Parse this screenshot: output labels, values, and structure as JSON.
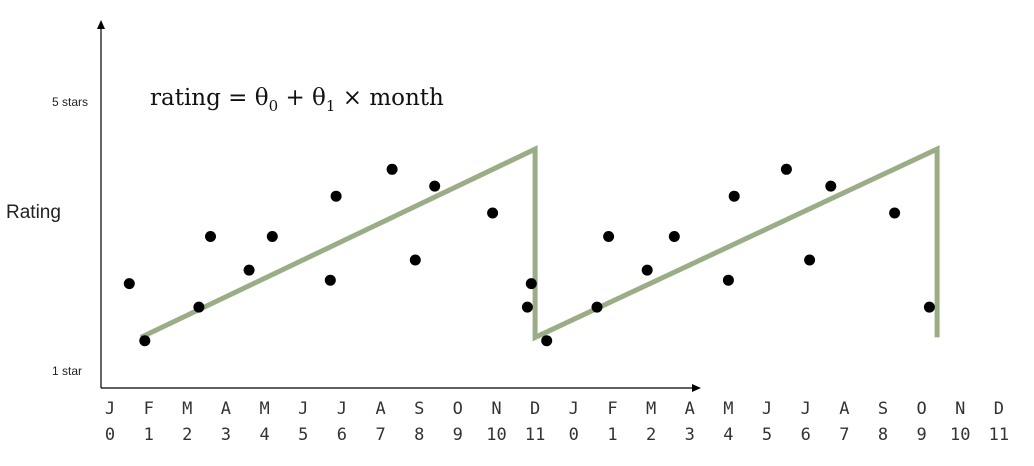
{
  "chart_data": {
    "type": "scatter",
    "title": "",
    "ylabel": "Rating",
    "xlabel": "",
    "y_tick_labels": {
      "top": "5 stars",
      "bottom": "1 star"
    },
    "annotation": "rating = θ₀ + θ₁ × month",
    "ylim": [
      1,
      5
    ],
    "xlim": [
      0,
      23
    ],
    "month_letters": [
      "J",
      "F",
      "M",
      "A",
      "M",
      "J",
      "J",
      "A",
      "S",
      "O",
      "N",
      "D",
      "J",
      "F",
      "M",
      "A",
      "M",
      "J",
      "J",
      "A",
      "S",
      "O",
      "N",
      "D"
    ],
    "month_numbers": [
      "0",
      "1",
      "2",
      "3",
      "4",
      "5",
      "6",
      "7",
      "8",
      "9",
      "10",
      "11",
      "0",
      "1",
      "2",
      "3",
      "4",
      "5",
      "6",
      "7",
      "8",
      "9",
      "10",
      "11"
    ],
    "points": [
      {
        "x": 0.5,
        "y": 2.3
      },
      {
        "x": 0.9,
        "y": 1.45
      },
      {
        "x": 2.3,
        "y": 1.95
      },
      {
        "x": 2.6,
        "y": 3.0
      },
      {
        "x": 3.6,
        "y": 2.5
      },
      {
        "x": 4.2,
        "y": 3.0
      },
      {
        "x": 5.7,
        "y": 2.35
      },
      {
        "x": 5.85,
        "y": 3.6
      },
      {
        "x": 7.3,
        "y": 4.0
      },
      {
        "x": 7.9,
        "y": 2.65
      },
      {
        "x": 8.4,
        "y": 3.75
      },
      {
        "x": 9.9,
        "y": 3.35
      },
      {
        "x": 10.8,
        "y": 1.95
      },
      {
        "x": 10.9,
        "y": 2.3
      },
      {
        "x": 11.3,
        "y": 1.45
      },
      {
        "x": 12.6,
        "y": 1.95
      },
      {
        "x": 12.9,
        "y": 3.0
      },
      {
        "x": 13.9,
        "y": 2.5
      },
      {
        "x": 14.6,
        "y": 3.0
      },
      {
        "x": 16.0,
        "y": 2.35
      },
      {
        "x": 16.15,
        "y": 3.6
      },
      {
        "x": 17.5,
        "y": 4.0
      },
      {
        "x": 18.1,
        "y": 2.65
      },
      {
        "x": 18.65,
        "y": 3.75
      },
      {
        "x": 20.3,
        "y": 3.35
      },
      {
        "x": 21.2,
        "y": 1.95
      }
    ],
    "trend_lines": [
      {
        "x": [
          0.8,
          11.0,
          11.0,
          21.4,
          21.4
        ],
        "y": [
          1.5,
          4.3,
          1.5,
          4.3,
          1.5
        ]
      }
    ],
    "trend_color": "#9aad86",
    "point_color": "#000000"
  }
}
